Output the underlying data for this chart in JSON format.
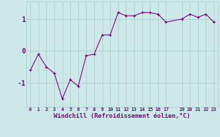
{
  "x": [
    0,
    1,
    2,
    3,
    4,
    5,
    6,
    7,
    8,
    9,
    10,
    11,
    12,
    13,
    14,
    15,
    16,
    17,
    19,
    20,
    21,
    22,
    23
  ],
  "y": [
    -0.6,
    -0.1,
    -0.5,
    -0.7,
    -1.5,
    -0.9,
    -1.1,
    -0.15,
    -0.1,
    0.5,
    0.5,
    1.2,
    1.1,
    1.1,
    1.2,
    1.2,
    1.15,
    0.9,
    1.0,
    1.15,
    1.05,
    1.15,
    0.9
  ],
  "line_color": "#800080",
  "marker": "+",
  "marker_size": 3,
  "bg_color": "#cce8e8",
  "grid_color": "#aacccc",
  "xlabel": "Windchill (Refroidissement éolien,°C)",
  "xlabel_color": "#800080",
  "tick_color": "#800080",
  "xlim": [
    -0.5,
    23.5
  ],
  "ylim": [
    -1.75,
    1.55
  ],
  "yticks": [
    -1,
    0,
    1
  ],
  "xticks": [
    0,
    1,
    2,
    3,
    4,
    5,
    6,
    7,
    8,
    9,
    10,
    11,
    12,
    13,
    14,
    15,
    16,
    17,
    19,
    20,
    21,
    22,
    23
  ]
}
